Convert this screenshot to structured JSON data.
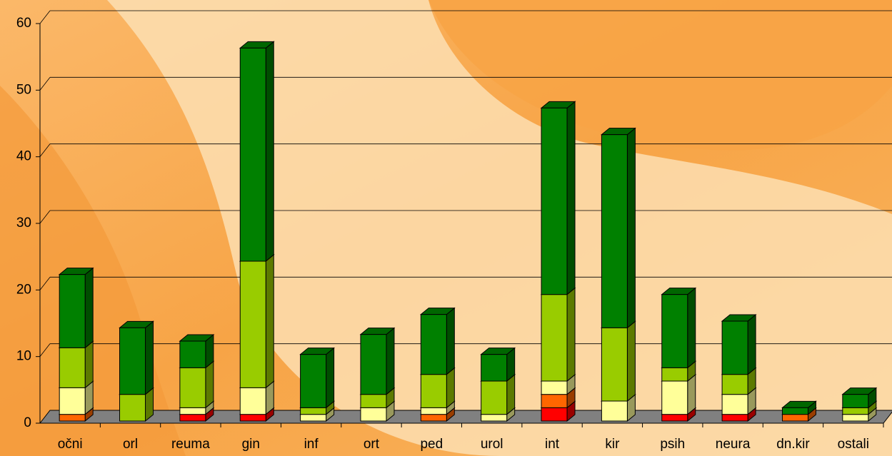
{
  "chart_data": {
    "type": "bar3d_stacked",
    "categories": [
      "očni",
      "orl",
      "reuma",
      "gin",
      "inf",
      "ort",
      "ped",
      "urol",
      "int",
      "kir",
      "psih",
      "neura",
      "dn.kir",
      "ostali"
    ],
    "series": [
      {
        "color": "#ff0000",
        "values": [
          0,
          0,
          1,
          1,
          0,
          0,
          0,
          0,
          2,
          0,
          1,
          1,
          0,
          0
        ]
      },
      {
        "color": "#ff6600",
        "values": [
          1,
          0,
          0,
          0,
          0,
          0,
          1,
          0,
          2,
          0,
          0,
          0,
          1,
          0
        ]
      },
      {
        "color": "#ffff99",
        "values": [
          4,
          0,
          1,
          4,
          1,
          2,
          1,
          1,
          2,
          3,
          5,
          3,
          0,
          1
        ]
      },
      {
        "color": "#99cc00",
        "values": [
          6,
          4,
          6,
          19,
          1,
          2,
          5,
          5,
          13,
          11,
          2,
          3,
          0,
          1
        ]
      },
      {
        "color": "#008000",
        "values": [
          11,
          10,
          4,
          32,
          8,
          9,
          9,
          4,
          28,
          29,
          11,
          8,
          1,
          2
        ]
      }
    ],
    "ylim": [
      0,
      60
    ],
    "yticks": [
      0,
      10,
      20,
      30,
      40,
      50,
      60
    ],
    "grid": true
  }
}
